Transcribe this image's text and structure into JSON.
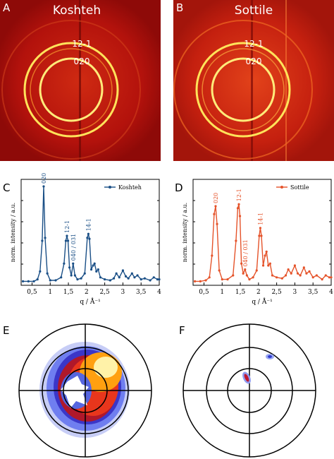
{
  "panels": {
    "A": {
      "letter": "A",
      "title": "Koshteh",
      "ring_labels": [
        "12-1",
        "020"
      ]
    },
    "B": {
      "letter": "B",
      "title": "Sottile",
      "ring_labels": [
        "12-1",
        "020"
      ]
    },
    "E": {
      "letter": "E"
    },
    "F": {
      "letter": "F"
    }
  },
  "colors": {
    "koshteh": "#1a4f86",
    "sottile": "#e5532a",
    "diffraction_bg": "#b3120c",
    "ring": "#ffe35a"
  },
  "chart_data": [
    {
      "panel": "C",
      "type": "line",
      "title": "",
      "xlabel": "q / Å⁻¹",
      "ylabel": "norm. intensity / a.u.",
      "xlim": [
        0.2,
        4.0
      ],
      "xticks": [
        "0,5",
        "1",
        "1,5",
        "2",
        "2,5",
        "3",
        "3,5",
        "4"
      ],
      "legend": "top-right",
      "series": [
        {
          "name": "Koshteh",
          "color": "#1a4f86",
          "x": [
            0.25,
            0.4,
            0.55,
            0.65,
            0.72,
            0.78,
            0.82,
            0.86,
            0.92,
            1.0,
            1.15,
            1.3,
            1.38,
            1.43,
            1.46,
            1.49,
            1.53,
            1.58,
            1.63,
            1.68,
            1.75,
            1.85,
            1.95,
            2.02,
            2.05,
            2.08,
            2.13,
            2.18,
            2.22,
            2.27,
            2.32,
            2.38,
            2.5,
            2.65,
            2.75,
            2.82,
            2.9,
            3.0,
            3.08,
            3.15,
            3.25,
            3.32,
            3.4,
            3.5,
            3.6,
            3.75,
            3.85,
            3.95,
            4.0
          ],
          "y": [
            0.04,
            0.04,
            0.04,
            0.06,
            0.14,
            0.45,
            1.0,
            0.48,
            0.12,
            0.05,
            0.05,
            0.08,
            0.22,
            0.45,
            0.5,
            0.45,
            0.18,
            0.1,
            0.22,
            0.1,
            0.06,
            0.07,
            0.12,
            0.48,
            0.52,
            0.47,
            0.16,
            0.2,
            0.22,
            0.14,
            0.16,
            0.08,
            0.06,
            0.05,
            0.07,
            0.12,
            0.08,
            0.15,
            0.09,
            0.07,
            0.12,
            0.08,
            0.1,
            0.06,
            0.07,
            0.05,
            0.08,
            0.06,
            0.06
          ]
        }
      ],
      "peak_labels": [
        {
          "label": "020",
          "x": 0.82
        },
        {
          "label": "12-1",
          "x": 1.46
        },
        {
          "label": "040 / 031",
          "x": 1.63
        },
        {
          "label": "14-1",
          "x": 2.05
        }
      ]
    },
    {
      "panel": "D",
      "type": "line",
      "title": "",
      "xlabel": "q / Å⁻¹",
      "ylabel": "norm. intensity / a.u.",
      "xlim": [
        0.2,
        4.0
      ],
      "xticks": [
        "0,5",
        "1",
        "1,5",
        "2",
        "2,5",
        "3",
        "3,5",
        "4"
      ],
      "legend": "top-right",
      "series": [
        {
          "name": "Sottile",
          "color": "#e5532a",
          "x": [
            0.25,
            0.4,
            0.55,
            0.65,
            0.72,
            0.78,
            0.82,
            0.86,
            0.92,
            1.0,
            1.15,
            1.3,
            1.38,
            1.43,
            1.46,
            1.49,
            1.53,
            1.58,
            1.63,
            1.68,
            1.75,
            1.85,
            1.95,
            2.02,
            2.05,
            2.08,
            2.13,
            2.18,
            2.22,
            2.27,
            2.32,
            2.38,
            2.5,
            2.65,
            2.75,
            2.82,
            2.9,
            3.0,
            3.08,
            3.15,
            3.25,
            3.32,
            3.4,
            3.5,
            3.6,
            3.75,
            3.85,
            3.95,
            4.0
          ],
          "y": [
            0.04,
            0.04,
            0.05,
            0.08,
            0.3,
            0.72,
            0.8,
            0.62,
            0.15,
            0.06,
            0.06,
            0.1,
            0.45,
            0.78,
            0.82,
            0.7,
            0.22,
            0.12,
            0.16,
            0.1,
            0.06,
            0.08,
            0.15,
            0.5,
            0.58,
            0.5,
            0.2,
            0.3,
            0.34,
            0.2,
            0.22,
            0.1,
            0.08,
            0.07,
            0.1,
            0.16,
            0.12,
            0.2,
            0.12,
            0.1,
            0.18,
            0.12,
            0.14,
            0.08,
            0.1,
            0.06,
            0.1,
            0.08,
            0.08
          ]
        }
      ],
      "peak_labels": [
        {
          "label": "020",
          "x": 0.82
        },
        {
          "label": "12-1",
          "x": 1.46
        },
        {
          "label": "040 / 031",
          "x": 1.63
        },
        {
          "label": "14-1",
          "x": 2.05
        }
      ]
    }
  ]
}
